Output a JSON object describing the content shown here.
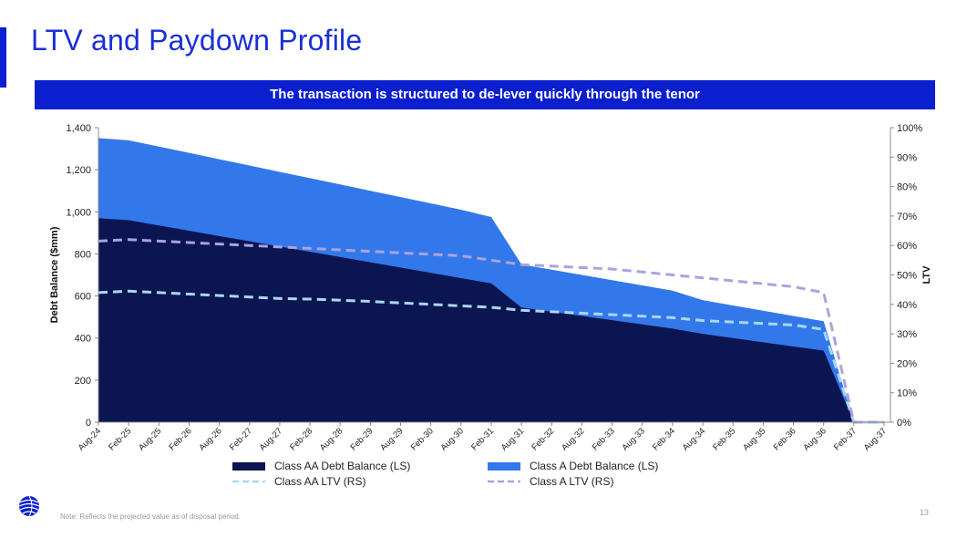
{
  "page": {
    "title": "LTV and Paydown Profile",
    "banner": "The transaction is structured to de-lever quickly through the tenor",
    "footnote": "Note: Reflects the projected value as of disposal period.",
    "page_number": "13"
  },
  "colors": {
    "brand_blue": "#0b1fcf",
    "aa_balance": "#0a1552",
    "a_balance": "#3378ea",
    "aa_ltv": "#a9d8f0",
    "a_ltv": "#aaa3e0"
  },
  "chart_data": {
    "type": "area",
    "categories": [
      "Aug-24",
      "Feb-25",
      "Aug-25",
      "Feb-26",
      "Aug-26",
      "Feb-27",
      "Aug-27",
      "Feb-28",
      "Aug-28",
      "Feb-29",
      "Aug-29",
      "Feb-30",
      "Aug-30",
      "Feb-31",
      "Aug-31",
      "Feb-32",
      "Aug-32",
      "Feb-33",
      "Aug-33",
      "Feb-34",
      "Aug-34",
      "Feb-35",
      "Aug-35",
      "Feb-36",
      "Aug-36",
      "Feb-37",
      "Aug-37"
    ],
    "series": [
      {
        "name": "Class AA Debt Balance (LS)",
        "kind": "area",
        "axis": "left",
        "values": [
          970,
          960,
          935,
          910,
          885,
          860,
          835,
          810,
          785,
          760,
          735,
          710,
          685,
          660,
          545,
          525,
          505,
          485,
          465,
          445,
          420,
          400,
          380,
          360,
          340,
          0,
          0
        ]
      },
      {
        "name": "Class A Debt Balance (LS)",
        "kind": "area",
        "axis": "left",
        "values": [
          1350,
          1340,
          1310,
          1280,
          1250,
          1220,
          1190,
          1160,
          1130,
          1100,
          1070,
          1040,
          1010,
          975,
          750,
          725,
          700,
          675,
          650,
          625,
          580,
          555,
          530,
          505,
          480,
          0,
          0
        ]
      },
      {
        "name": "Class AA LTV (RS)",
        "kind": "line",
        "axis": "right",
        "values": [
          44,
          44.5,
          44,
          43.5,
          43,
          42.5,
          42,
          41.8,
          41.4,
          41,
          40.5,
          40,
          39.5,
          39,
          38,
          37.5,
          37,
          36.5,
          36,
          35.5,
          34.5,
          34,
          33.5,
          33,
          31.5,
          0,
          0
        ]
      },
      {
        "name": "Class A LTV (RS)",
        "kind": "line",
        "axis": "right",
        "values": [
          61.5,
          62,
          61.5,
          61,
          60.5,
          60,
          59.5,
          59,
          58.5,
          58,
          57.5,
          57,
          56.5,
          55,
          53.5,
          53,
          52.5,
          52,
          51,
          50,
          49,
          48,
          47,
          46,
          44,
          0,
          0
        ]
      }
    ],
    "ylabel": "Debt Balance ($mm)",
    "ylabel_right": "LTV",
    "ylim": [
      0,
      1400
    ],
    "ylim_right": [
      0,
      100
    ],
    "yticks": [
      "0",
      "200",
      "400",
      "600",
      "800",
      "1,000",
      "1,200",
      "1,400"
    ],
    "yticks_right": [
      "0%",
      "10%",
      "20%",
      "30%",
      "40%",
      "50%",
      "60%",
      "70%",
      "80%",
      "90%",
      "100%"
    ],
    "legend": [
      {
        "label": "Class AA Debt Balance (LS)",
        "style": "area"
      },
      {
        "label": "Class A Debt Balance (LS)",
        "style": "area"
      },
      {
        "label": "Class AA LTV (RS)",
        "style": "dash"
      },
      {
        "label": "Class A LTV (RS)",
        "style": "dash"
      }
    ],
    "legend_position": "bottom"
  }
}
